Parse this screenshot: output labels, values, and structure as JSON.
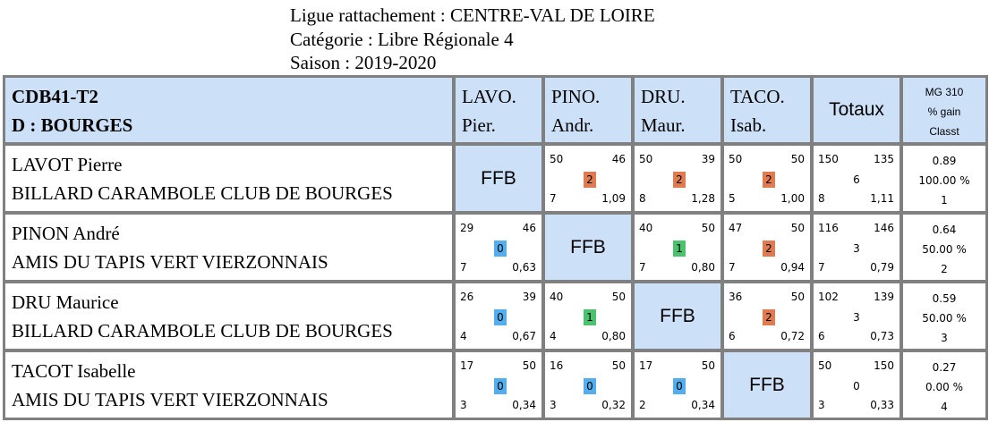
{
  "header": {
    "ligue": "Ligue rattachement : CENTRE-VAL DE LOIRE",
    "categorie": "Catégorie : Libre Régionale 4",
    "saison": "Saison : 2019-2020"
  },
  "table": {
    "title_line1": "CDB41-T2",
    "title_line2": "D : BOURGES",
    "columns": [
      {
        "line1": "LAVO.",
        "line2": "Pier."
      },
      {
        "line1": "PINO.",
        "line2": "Andr."
      },
      {
        "line1": "DRU.",
        "line2": "Maur."
      },
      {
        "line1": "TACO.",
        "line2": "Isab."
      }
    ],
    "totaux_label": "Totaux",
    "mg_header": [
      "MG 310",
      "% gain",
      "Classt"
    ],
    "ffb_label": "FFB",
    "colors": {
      "header_bg": "#cce0f8",
      "badge_0": "#52aeec",
      "badge_1": "#4cc26e",
      "badge_2": "#e07a50",
      "border": "#808080"
    },
    "players": [
      {
        "name": "LAVOT Pierre",
        "club": "BILLARD CARAMBOLE CLUB DE BOURGES",
        "matches": [
          null,
          {
            "pts": "50",
            "opp": "46",
            "score": "2",
            "rep": "7",
            "moy": "1,09"
          },
          {
            "pts": "50",
            "opp": "39",
            "score": "2",
            "rep": "8",
            "moy": "1,28"
          },
          {
            "pts": "50",
            "opp": "50",
            "score": "2",
            "rep": "5",
            "moy": "1,00"
          }
        ],
        "totals": {
          "pts": "150",
          "opp": "135",
          "score": "6",
          "rep": "8",
          "moy": "1,11"
        },
        "mg": "0.89",
        "gain": "100.00 %",
        "classt": "1"
      },
      {
        "name": "PINON André",
        "club": "AMIS DU TAPIS VERT VIERZONNAIS",
        "matches": [
          {
            "pts": "29",
            "opp": "46",
            "score": "0",
            "rep": "7",
            "moy": "0,63"
          },
          null,
          {
            "pts": "40",
            "opp": "50",
            "score": "1",
            "rep": "7",
            "moy": "0,80"
          },
          {
            "pts": "47",
            "opp": "50",
            "score": "2",
            "rep": "7",
            "moy": "0,94"
          }
        ],
        "totals": {
          "pts": "116",
          "opp": "146",
          "score": "3",
          "rep": "7",
          "moy": "0,79"
        },
        "mg": "0.64",
        "gain": "50.00 %",
        "classt": "2"
      },
      {
        "name": "DRU Maurice",
        "club": "BILLARD CARAMBOLE CLUB DE BOURGES",
        "matches": [
          {
            "pts": "26",
            "opp": "39",
            "score": "0",
            "rep": "4",
            "moy": "0,67"
          },
          {
            "pts": "40",
            "opp": "50",
            "score": "1",
            "rep": "4",
            "moy": "0,80"
          },
          null,
          {
            "pts": "36",
            "opp": "50",
            "score": "2",
            "rep": "6",
            "moy": "0,72"
          }
        ],
        "totals": {
          "pts": "102",
          "opp": "139",
          "score": "3",
          "rep": "6",
          "moy": "0,73"
        },
        "mg": "0.59",
        "gain": "50.00 %",
        "classt": "3"
      },
      {
        "name": "TACOT Isabelle",
        "club": "AMIS DU TAPIS VERT VIERZONNAIS",
        "matches": [
          {
            "pts": "17",
            "opp": "50",
            "score": "0",
            "rep": "3",
            "moy": "0,34"
          },
          {
            "pts": "16",
            "opp": "50",
            "score": "0",
            "rep": "3",
            "moy": "0,32"
          },
          {
            "pts": "17",
            "opp": "50",
            "score": "0",
            "rep": "2",
            "moy": "0,34"
          },
          null
        ],
        "totals": {
          "pts": "50",
          "opp": "150",
          "score": "0",
          "rep": "3",
          "moy": "0,33"
        },
        "mg": "0.27",
        "gain": "0.00 %",
        "classt": "4"
      }
    ]
  }
}
